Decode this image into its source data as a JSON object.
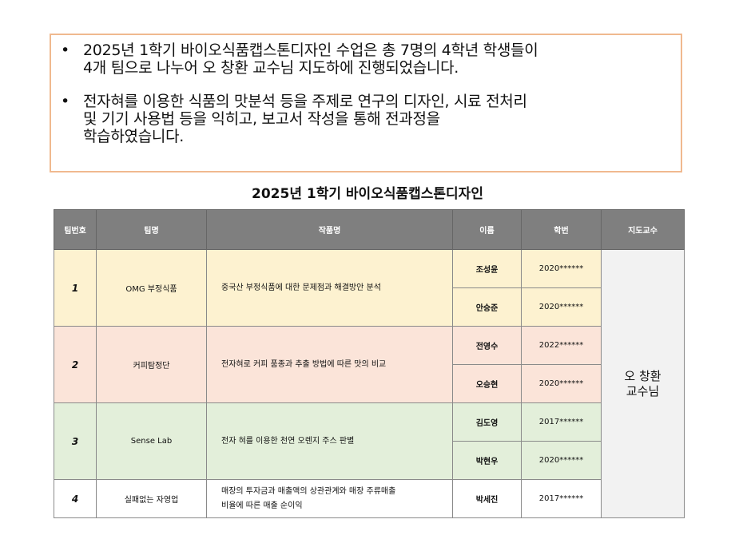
{
  "intro": {
    "bullets": [
      [
        "2025년 1학기 바이오식품캡스톤디자인 수업은 총 7명의 4학년 학생들이",
        "4개 팀으로 나누어 오 창환 교수님 지도하에 진행되었습니다."
      ],
      [
        "전자혀를 이용한 식품의 맛분석 등을 주제로 연구의 디자인, 시료 전처리",
        "및 기기 사용법 등을 익히고, 보고서 작성을 통해 전과정을",
        "학습하였습니다."
      ]
    ],
    "bullet_symbol": "•"
  },
  "title": "2025년 1학기 바이오식품캡스톤디자인",
  "table": {
    "headers": [
      "팀번호",
      "팀명",
      "작품명",
      "이름",
      "학번",
      "지도교수"
    ],
    "professor": [
      "오 창환",
      "교수님"
    ],
    "teams": [
      {
        "num": "1",
        "name": "OMG 부정식품",
        "work": [
          "중국산 부정식품에 대한 문제점과 해결방안 분석"
        ],
        "members": [
          [
            "조성윤",
            "2020******"
          ],
          [
            "안승준",
            "2020******"
          ]
        ],
        "color": "#fdf2d0"
      },
      {
        "num": "2",
        "name": "커피탐정단",
        "work": [
          "전자혀로 커피 품종과 추출 방법에 따른 맛의 비교"
        ],
        "members": [
          [
            "전영수",
            "2022******"
          ],
          [
            "오승현",
            "2020******"
          ]
        ],
        "color": "#fbe4d9"
      },
      {
        "num": "3",
        "name": "Sense Lab",
        "work": [
          "전자 혀를 이용한 천연 오렌지 주스 판별"
        ],
        "members": [
          [
            "김도영",
            "2017******"
          ],
          [
            "박현우",
            "2020******"
          ]
        ],
        "color": "#e3efda"
      },
      {
        "num": "4",
        "name": "실패없는 자영업",
        "work": [
          "매장의 투자금과 매출액의 상관관계와 매장 주류매출",
          "비율에 따른 매출 순이익"
        ],
        "members": [
          [
            "박세진",
            "2017******"
          ]
        ],
        "color": "#ffffff"
      }
    ]
  }
}
